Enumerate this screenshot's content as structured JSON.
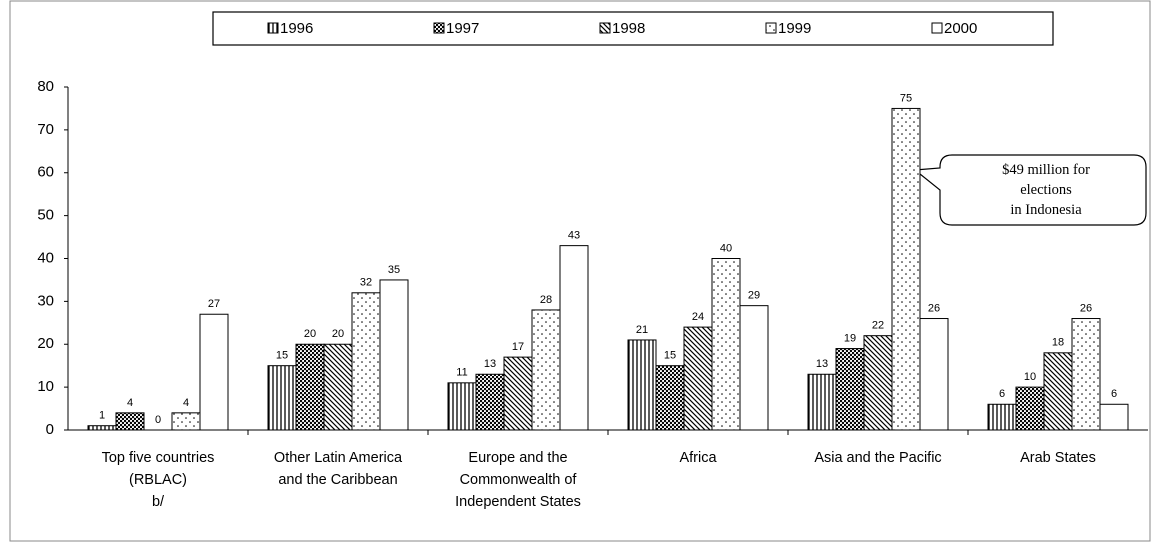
{
  "chart_data": {
    "type": "bar",
    "categories": [
      "Top five countries\n(RBLAC)\nb/",
      "Other Latin America\nand the Caribbean",
      "Europe and the\nCommonwealth of\nIndependent States",
      "Africa",
      "Asia and the Pacific",
      "Arab States"
    ],
    "series": [
      {
        "name": "1996",
        "color": "#000000",
        "pattern": "vertical",
        "values": [
          1,
          15,
          11,
          21,
          13,
          6
        ]
      },
      {
        "name": "1997",
        "color": "#000000",
        "pattern": "dense-dots",
        "values": [
          4,
          20,
          13,
          15,
          19,
          10
        ]
      },
      {
        "name": "1998",
        "color": "#000000",
        "pattern": "diagonal",
        "values": [
          0,
          20,
          17,
          24,
          22,
          18
        ]
      },
      {
        "name": "1999",
        "color": "#000000",
        "pattern": "sparse-dots",
        "values": [
          4,
          32,
          28,
          40,
          75,
          26
        ]
      },
      {
        "name": "2000",
        "color": "#000000",
        "pattern": "none",
        "values": [
          27,
          35,
          43,
          29,
          26,
          6
        ]
      }
    ],
    "ylim": [
      0,
      80
    ],
    "yticks": [
      0,
      10,
      20,
      30,
      40,
      50,
      60,
      70,
      80
    ],
    "grid": false,
    "legend": "top",
    "annotation": "$49 million for\nelections\nin Indonesia"
  }
}
